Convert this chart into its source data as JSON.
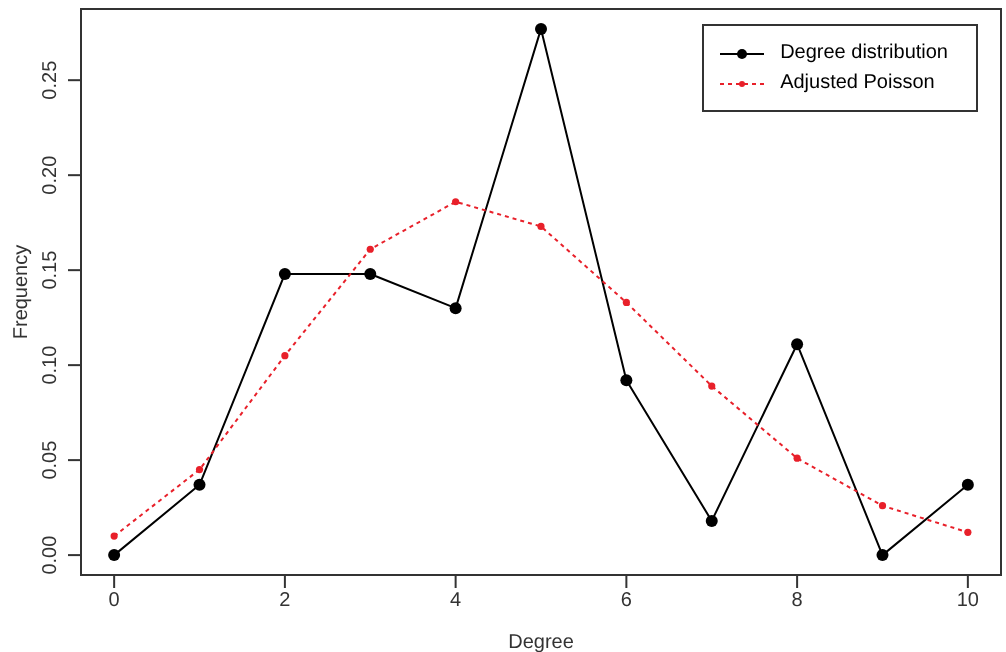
{
  "chart_data": {
    "type": "line",
    "xlabel": "Degree",
    "ylabel": "Frequency",
    "x": [
      0,
      1,
      2,
      3,
      4,
      5,
      6,
      7,
      8,
      9,
      10
    ],
    "series": [
      {
        "name": "Degree distribution",
        "color": "#000000",
        "marker": "circle",
        "line_style": "solid",
        "values": [
          0,
          0.037,
          0.148,
          0.148,
          0.13,
          0.277,
          0.092,
          0.018,
          0.111,
          0,
          0.037
        ]
      },
      {
        "name": "Adjusted Poisson",
        "color": "#e8202a",
        "marker": "circle",
        "line_style": "dotted",
        "values": [
          0.01,
          0.045,
          0.105,
          0.161,
          0.186,
          0.173,
          0.133,
          0.089,
          0.051,
          0.026,
          0.012
        ]
      }
    ],
    "xlim": [
      -0.4,
      10.4
    ],
    "xticks": [
      0,
      2,
      4,
      6,
      8,
      10
    ],
    "ylim": [
      -0.011,
      0.288
    ],
    "yticks": [
      {
        "value": 0,
        "label": "0.00"
      },
      {
        "value": 0.05,
        "label": "0.05"
      },
      {
        "value": 0.1,
        "label": "0.10"
      },
      {
        "value": 0.15,
        "label": "0.15"
      },
      {
        "value": 0.2,
        "label": "0.20"
      },
      {
        "value": 0.25,
        "label": "0.25"
      }
    ],
    "legend": "top right",
    "grid": false
  }
}
